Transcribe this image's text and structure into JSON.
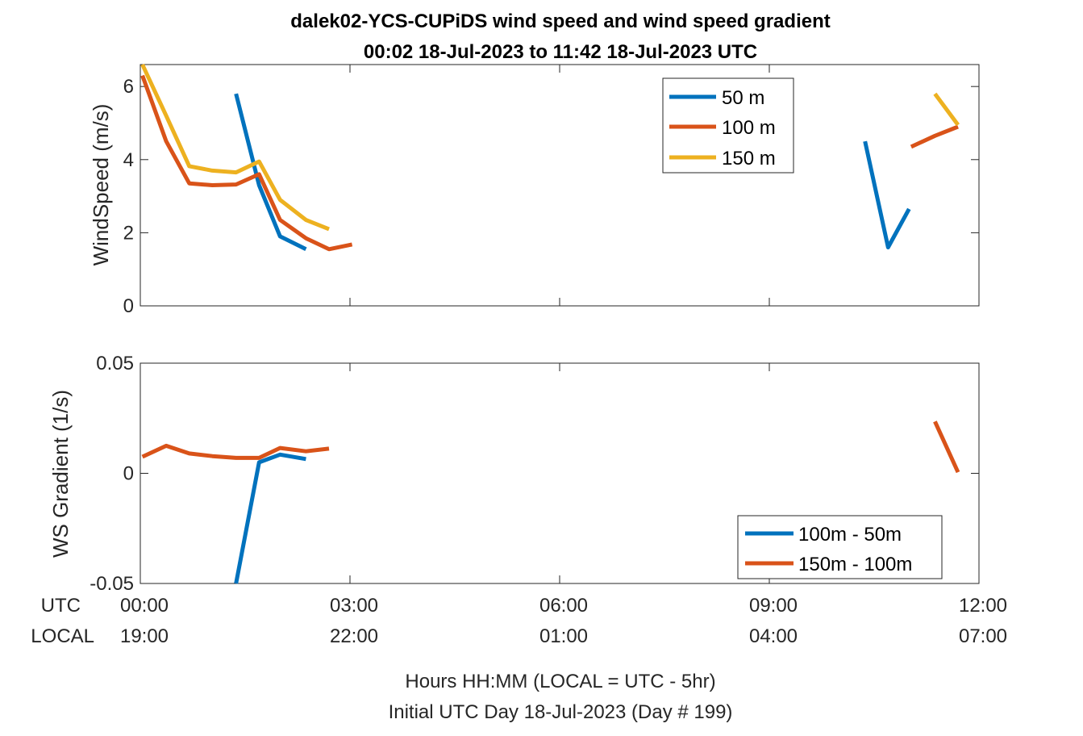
{
  "title": {
    "line1": "dalek02-YCS-CUPiDS  wind speed and wind speed gradient",
    "line2": "00:02 18-Jul-2023 to 11:42 18-Jul-2023  UTC"
  },
  "xaxis": {
    "row_labels": {
      "utc": "UTC",
      "local": "LOCAL"
    },
    "utc_ticks": [
      "00:00",
      "03:00",
      "06:00",
      "09:00",
      "12:00"
    ],
    "local_ticks": [
      "19:00",
      "22:00",
      "01:00",
      "04:00",
      "07:00"
    ],
    "tick_hours": [
      0,
      3,
      6,
      9,
      12
    ],
    "label_line1": "Hours HH:MM  (LOCAL = UTC - 5hr)",
    "label_line2": "Initial UTC Day 18-Jul-2023 (Day # 199)"
  },
  "colors": {
    "blue": "#0072BD",
    "orange": "#D95319",
    "yellow": "#EDB120"
  },
  "chart_data": [
    {
      "type": "line",
      "ylabel": "WindSpeed (m/s)",
      "xlim": [
        0,
        12
      ],
      "ylim": [
        0,
        6.6
      ],
      "yticks": [
        0,
        2,
        4,
        6
      ],
      "ytick_labels": [
        "0",
        "2",
        "4",
        "6"
      ],
      "legend_position": "top-right",
      "series": [
        {
          "name": "50 m",
          "color": "#0072BD",
          "segments": [
            [
              [
                1.37,
                5.8
              ],
              [
                1.7,
                3.3
              ],
              [
                2.0,
                1.9
              ],
              [
                2.37,
                1.55
              ]
            ],
            [
              [
                10.37,
                4.5
              ],
              [
                10.7,
                1.6
              ],
              [
                11.0,
                2.65
              ]
            ]
          ]
        },
        {
          "name": "100 m",
          "color": "#D95319",
          "segments": [
            [
              [
                0.03,
                6.3
              ],
              [
                0.37,
                4.5
              ],
              [
                0.7,
                3.35
              ],
              [
                1.03,
                3.3
              ],
              [
                1.37,
                3.32
              ],
              [
                1.7,
                3.6
              ],
              [
                2.0,
                2.35
              ],
              [
                2.37,
                1.85
              ],
              [
                2.7,
                1.55
              ],
              [
                3.03,
                1.68
              ]
            ],
            [
              [
                11.03,
                4.35
              ],
              [
                11.37,
                4.65
              ],
              [
                11.7,
                4.9
              ]
            ]
          ]
        },
        {
          "name": "150 m",
          "color": "#EDB120",
          "segments": [
            [
              [
                0.03,
                6.6
              ],
              [
                0.37,
                5.2
              ],
              [
                0.7,
                3.82
              ],
              [
                1.03,
                3.7
              ],
              [
                1.37,
                3.65
              ],
              [
                1.7,
                3.95
              ],
              [
                2.0,
                2.9
              ],
              [
                2.37,
                2.35
              ],
              [
                2.7,
                2.1
              ]
            ],
            [
              [
                11.37,
                5.8
              ],
              [
                11.7,
                4.95
              ]
            ]
          ]
        }
      ]
    },
    {
      "type": "line",
      "ylabel": "WS Gradient (1/s)",
      "xlim": [
        0,
        12
      ],
      "ylim": [
        -0.05,
        0.05
      ],
      "yticks": [
        -0.05,
        0,
        0.05
      ],
      "ytick_labels": [
        "-0.05",
        "0",
        "0.05"
      ],
      "legend_position": "bottom-right",
      "series": [
        {
          "name": "100m - 50m",
          "color": "#0072BD",
          "segments": [
            [
              [
                1.37,
                -0.05
              ],
              [
                1.7,
                0.005
              ],
              [
                2.0,
                0.0085
              ],
              [
                2.37,
                0.0065
              ]
            ]
          ]
        },
        {
          "name": "150m - 100m",
          "color": "#D95319",
          "segments": [
            [
              [
                0.03,
                0.0075
              ],
              [
                0.37,
                0.0125
              ],
              [
                0.7,
                0.009
              ],
              [
                1.03,
                0.0078
              ],
              [
                1.37,
                0.007
              ],
              [
                1.7,
                0.007
              ],
              [
                2.0,
                0.0115
              ],
              [
                2.37,
                0.01
              ],
              [
                2.7,
                0.0112
              ]
            ],
            [
              [
                11.37,
                0.0235
              ],
              [
                11.7,
                0.0005
              ]
            ]
          ]
        }
      ]
    }
  ]
}
